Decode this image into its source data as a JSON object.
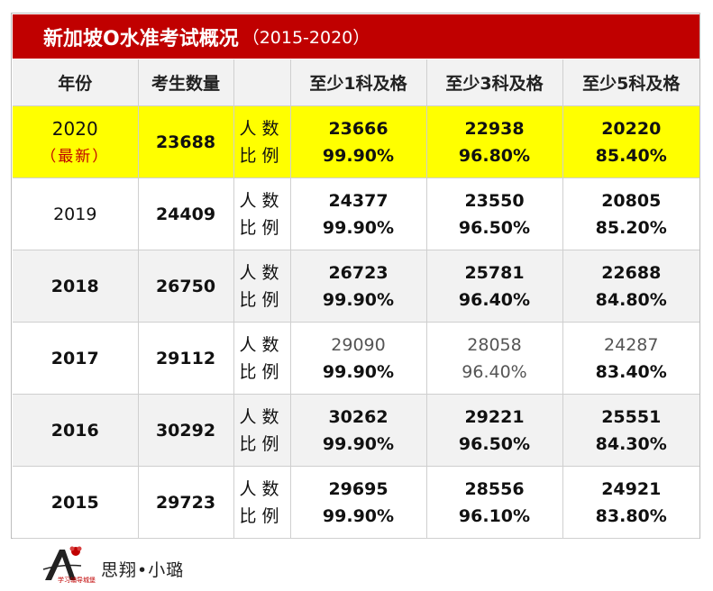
{
  "title": {
    "main": "新加坡O水准考试概况",
    "sub": "（2015-2020）"
  },
  "headers": [
    "年份",
    "考生数量",
    "",
    "至少1科及格",
    "至少3科及格",
    "至少5科及格"
  ],
  "row_labels": {
    "count": "人数",
    "ratio": "比例"
  },
  "latest_tag": "（最新）",
  "rows": [
    {
      "year": "2020",
      "total": "23688",
      "c1": "23666",
      "p1": "99.90%",
      "c3": "22938",
      "p3": "96.80%",
      "c5": "20220",
      "p5": "85.40%"
    },
    {
      "year": "2019",
      "total": "24409",
      "c1": "24377",
      "p1": "99.90%",
      "c3": "23550",
      "p3": "96.50%",
      "c5": "20805",
      "p5": "85.20%"
    },
    {
      "year": "2018",
      "total": "26750",
      "c1": "26723",
      "p1": "99.90%",
      "c3": "25781",
      "p3": "96.40%",
      "c5": "22688",
      "p5": "84.80%"
    },
    {
      "year": "2017",
      "total": "29112",
      "c1": "29090",
      "p1": "99.90%",
      "c3": "28058",
      "p3": "96.40%",
      "c5": "24287",
      "p5": "83.40%"
    },
    {
      "year": "2016",
      "total": "30292",
      "c1": "30262",
      "p1": "99.90%",
      "c3": "29221",
      "p3": "96.50%",
      "c5": "25551",
      "p5": "84.30%"
    },
    {
      "year": "2015",
      "total": "29723",
      "c1": "29695",
      "p1": "99.90%",
      "c3": "28556",
      "p3": "96.10%",
      "c5": "24921",
      "p5": "83.80%"
    }
  ],
  "footer": {
    "brand": "思翔•小璐",
    "logo_text": "学习辅导城堡"
  },
  "colors": {
    "title_bg": "#c00000",
    "highlight_row": "#ffff00",
    "alt_row": "#f2f2f2",
    "latest_tag": "#c00000"
  }
}
